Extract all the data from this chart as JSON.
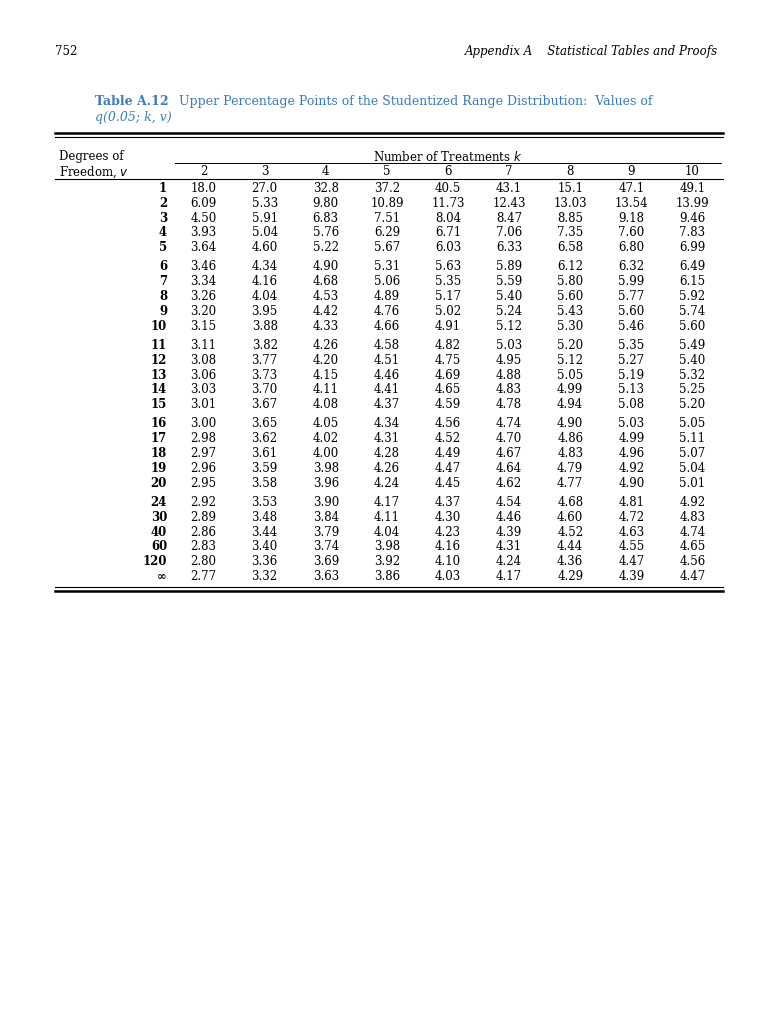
{
  "page_number": "752",
  "header_right": "Appendix A    Statistical Tables and Proofs",
  "table_title_blue": "Table A.12",
  "table_title_rest": " Upper Percentage Points of the Studentized Range Distribution:  Values of",
  "table_title_line2_blue": "q(0.05; k, v)",
  "col_header_left1": "Degrees of",
  "col_header_left2": "Freedom, v",
  "col_header_span": "Number of Treatments k",
  "col_numbers": [
    "2",
    "3",
    "4",
    "5",
    "6",
    "7",
    "8",
    "9",
    "10"
  ],
  "rows": [
    [
      "1",
      "18.0",
      "27.0",
      "32.8",
      "37.2",
      "40.5",
      "43.1",
      "15.1",
      "47.1",
      "49.1"
    ],
    [
      "2",
      "6.09",
      "5.33",
      "9.80",
      "10.89",
      "11.73",
      "12.43",
      "13.03",
      "13.54",
      "13.99"
    ],
    [
      "3",
      "4.50",
      "5.91",
      "6.83",
      "7.51",
      "8.04",
      "8.47",
      "8.85",
      "9.18",
      "9.46"
    ],
    [
      "4",
      "3.93",
      "5.04",
      "5.76",
      "6.29",
      "6.71",
      "7.06",
      "7.35",
      "7.60",
      "7.83"
    ],
    [
      "5",
      "3.64",
      "4.60",
      "5.22",
      "5.67",
      "6.03",
      "6.33",
      "6.58",
      "6.80",
      "6.99"
    ],
    [
      "6",
      "3.46",
      "4.34",
      "4.90",
      "5.31",
      "5.63",
      "5.89",
      "6.12",
      "6.32",
      "6.49"
    ],
    [
      "7",
      "3.34",
      "4.16",
      "4.68",
      "5.06",
      "5.35",
      "5.59",
      "5.80",
      "5.99",
      "6.15"
    ],
    [
      "8",
      "3.26",
      "4.04",
      "4.53",
      "4.89",
      "5.17",
      "5.40",
      "5.60",
      "5.77",
      "5.92"
    ],
    [
      "9",
      "3.20",
      "3.95",
      "4.42",
      "4.76",
      "5.02",
      "5.24",
      "5.43",
      "5.60",
      "5.74"
    ],
    [
      "10",
      "3.15",
      "3.88",
      "4.33",
      "4.66",
      "4.91",
      "5.12",
      "5.30",
      "5.46",
      "5.60"
    ],
    [
      "11",
      "3.11",
      "3.82",
      "4.26",
      "4.58",
      "4.82",
      "5.03",
      "5.20",
      "5.35",
      "5.49"
    ],
    [
      "12",
      "3.08",
      "3.77",
      "4.20",
      "4.51",
      "4.75",
      "4.95",
      "5.12",
      "5.27",
      "5.40"
    ],
    [
      "13",
      "3.06",
      "3.73",
      "4.15",
      "4.46",
      "4.69",
      "4.88",
      "5.05",
      "5.19",
      "5.32"
    ],
    [
      "14",
      "3.03",
      "3.70",
      "4.11",
      "4.41",
      "4.65",
      "4.83",
      "4.99",
      "5.13",
      "5.25"
    ],
    [
      "15",
      "3.01",
      "3.67",
      "4.08",
      "4.37",
      "4.59",
      "4.78",
      "4.94",
      "5.08",
      "5.20"
    ],
    [
      "16",
      "3.00",
      "3.65",
      "4.05",
      "4.34",
      "4.56",
      "4.74",
      "4.90",
      "5.03",
      "5.05"
    ],
    [
      "17",
      "2.98",
      "3.62",
      "4.02",
      "4.31",
      "4.52",
      "4.70",
      "4.86",
      "4.99",
      "5.11"
    ],
    [
      "18",
      "2.97",
      "3.61",
      "4.00",
      "4.28",
      "4.49",
      "4.67",
      "4.83",
      "4.96",
      "5.07"
    ],
    [
      "19",
      "2.96",
      "3.59",
      "3.98",
      "4.26",
      "4.47",
      "4.64",
      "4.79",
      "4.92",
      "5.04"
    ],
    [
      "20",
      "2.95",
      "3.58",
      "3.96",
      "4.24",
      "4.45",
      "4.62",
      "4.77",
      "4.90",
      "5.01"
    ],
    [
      "24",
      "2.92",
      "3.53",
      "3.90",
      "4.17",
      "4.37",
      "4.54",
      "4.68",
      "4.81",
      "4.92"
    ],
    [
      "30",
      "2.89",
      "3.48",
      "3.84",
      "4.11",
      "4.30",
      "4.46",
      "4.60",
      "4.72",
      "4.83"
    ],
    [
      "40",
      "2.86",
      "3.44",
      "3.79",
      "4.04",
      "4.23",
      "4.39",
      "4.52",
      "4.63",
      "4.74"
    ],
    [
      "60",
      "2.83",
      "3.40",
      "3.74",
      "3.98",
      "4.16",
      "4.31",
      "4.44",
      "4.55",
      "4.65"
    ],
    [
      "120",
      "2.80",
      "3.36",
      "3.69",
      "3.92",
      "4.10",
      "4.24",
      "4.36",
      "4.47",
      "4.56"
    ],
    [
      "∞",
      "2.77",
      "3.32",
      "3.63",
      "3.86",
      "4.03",
      "4.17",
      "4.29",
      "4.39",
      "4.47"
    ]
  ],
  "group_breaks_after": [
    4,
    9,
    14,
    19
  ],
  "blue_color": "#3a7bbf",
  "text_color": "#000000",
  "background": "#ffffff",
  "fontsize": 8.5,
  "title_fontsize": 9.0
}
